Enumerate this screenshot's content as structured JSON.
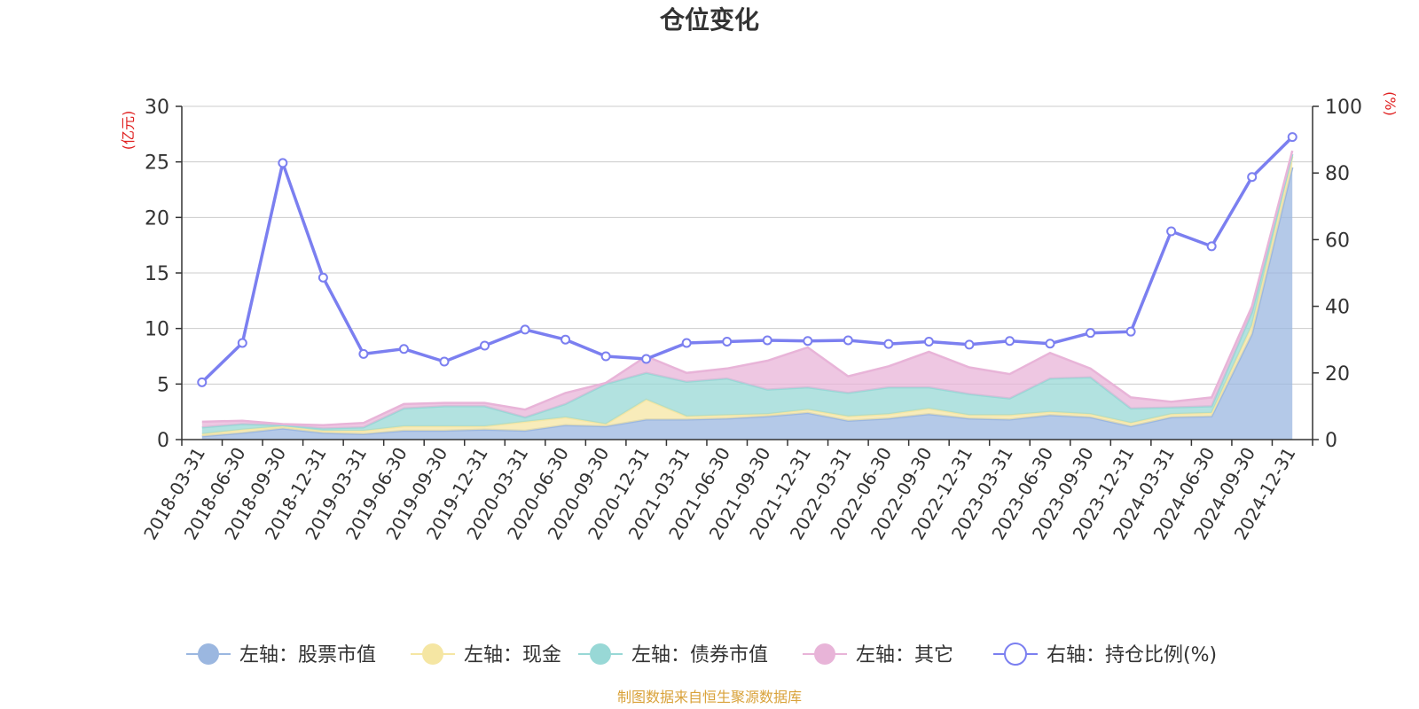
{
  "chart_data": {
    "type": "area",
    "title": "仓位变化",
    "left_axis_unit": "(亿元)",
    "right_axis_unit": "(%)",
    "left_ylim": [
      0,
      30
    ],
    "left_ticks": [
      "0",
      "5",
      "10",
      "15",
      "20",
      "25",
      "30"
    ],
    "right_ylim": [
      0,
      100
    ],
    "right_ticks": [
      "0",
      "20",
      "40",
      "60",
      "80",
      "100"
    ],
    "categories": [
      "2018-03-31",
      "2018-06-30",
      "2018-09-30",
      "2018-12-31",
      "2019-03-31",
      "2019-06-30",
      "2019-09-30",
      "2019-12-31",
      "2020-03-31",
      "2020-06-30",
      "2020-09-30",
      "2020-12-31",
      "2021-03-31",
      "2021-06-30",
      "2021-09-30",
      "2021-12-31",
      "2022-03-31",
      "2022-06-30",
      "2022-09-30",
      "2022-12-31",
      "2023-03-31",
      "2023-06-30",
      "2023-09-30",
      "2023-12-31",
      "2024-03-31",
      "2024-06-30",
      "2024-09-30",
      "2024-12-31"
    ],
    "stacked_series": [
      {
        "name": "左轴：股票市值",
        "color": "#9bb7e0",
        "values": [
          0.3,
          0.6,
          1.0,
          0.6,
          0.5,
          0.8,
          0.8,
          0.9,
          0.8,
          1.3,
          1.2,
          1.8,
          1.8,
          1.9,
          2.1,
          2.4,
          1.7,
          1.9,
          2.3,
          1.9,
          1.8,
          2.2,
          2.0,
          1.2,
          2.0,
          2.1,
          9.5,
          24.5
        ]
      },
      {
        "name": "左轴：现金",
        "color": "#f5e6a3",
        "values": [
          0.2,
          0.3,
          0.2,
          0.2,
          0.3,
          0.4,
          0.4,
          0.3,
          0.8,
          0.7,
          0.2,
          1.8,
          0.3,
          0.3,
          0.2,
          0.3,
          0.4,
          0.4,
          0.5,
          0.3,
          0.4,
          0.3,
          0.3,
          0.3,
          0.3,
          0.3,
          0.8,
          1.0
        ]
      },
      {
        "name": "左轴：债券市值",
        "color": "#98d8d6",
        "values": [
          0.6,
          0.5,
          0.1,
          0.2,
          0.3,
          1.6,
          1.8,
          1.8,
          0.4,
          1.2,
          3.6,
          2.4,
          3.1,
          3.3,
          2.2,
          2.0,
          2.1,
          2.4,
          1.9,
          1.9,
          1.5,
          3.0,
          3.3,
          1.3,
          0.6,
          0.6,
          1.2,
          0.2
        ]
      },
      {
        "name": "左轴：其它",
        "color": "#e8b4d8",
        "values": [
          0.5,
          0.3,
          0.1,
          0.3,
          0.4,
          0.4,
          0.3,
          0.3,
          0.7,
          1.0,
          0.1,
          1.5,
          0.8,
          0.9,
          2.6,
          3.6,
          1.5,
          1.9,
          3.2,
          2.4,
          2.2,
          2.3,
          0.8,
          1.0,
          0.5,
          0.8,
          0.5,
          0.3
        ]
      }
    ],
    "line_series": {
      "name": "右轴：持仓比例(%)",
      "color": "#7b7ff0",
      "values": [
        17.2,
        29.0,
        83.0,
        48.6,
        25.7,
        27.2,
        23.4,
        28.2,
        33.0,
        30.0,
        25.0,
        24.2,
        29.0,
        29.4,
        29.8,
        29.6,
        29.8,
        28.7,
        29.4,
        28.5,
        29.6,
        28.8,
        32.0,
        32.4,
        62.5,
        58.0,
        78.8,
        90.8
      ]
    }
  },
  "source": "制图数据来自恒生聚源数据库"
}
